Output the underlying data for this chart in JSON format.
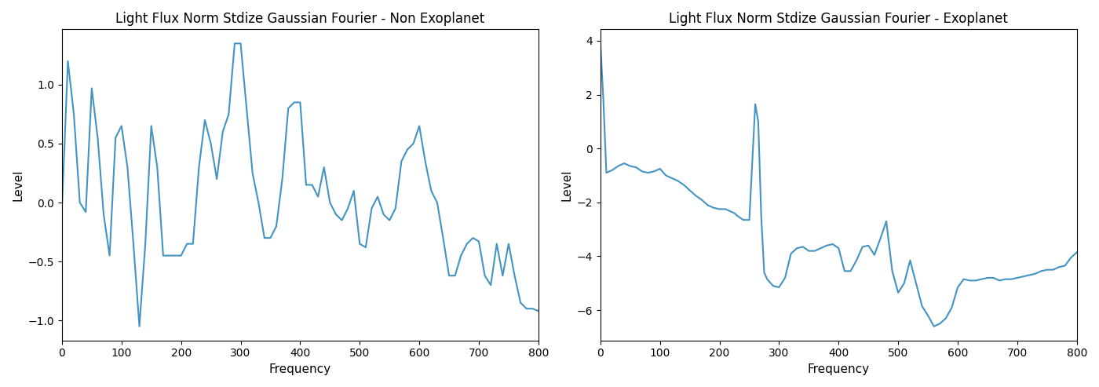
{
  "title_left": "Light Flux Norm Stdize Gaussian Fourier - Non Exoplanet",
  "title_right": "Light Flux Norm Stdize Gaussian Fourier - Exoplanet",
  "xlabel": "Frequency",
  "ylabel": "Level",
  "line_color": "#4393c3",
  "line_width": 1.5,
  "left": {
    "x": [
      0,
      10,
      20,
      30,
      40,
      50,
      60,
      70,
      80,
      90,
      100,
      110,
      120,
      130,
      140,
      150,
      160,
      170,
      180,
      190,
      200,
      210,
      220,
      230,
      240,
      250,
      260,
      270,
      280,
      290,
      300,
      310,
      320,
      330,
      340,
      350,
      360,
      370,
      380,
      390,
      400,
      410,
      420,
      430,
      440,
      450,
      460,
      470,
      480,
      490,
      500,
      510,
      520,
      530,
      540,
      550,
      560,
      570,
      580,
      590,
      600,
      610,
      620,
      630,
      640,
      650,
      660,
      670,
      680,
      690,
      700,
      710,
      720,
      730,
      740,
      750,
      760,
      770,
      780,
      790,
      800
    ],
    "y": [
      -0.05,
      1.2,
      0.75,
      0.0,
      -0.08,
      0.97,
      0.55,
      -0.1,
      -0.45,
      0.55,
      0.65,
      0.3,
      -0.35,
      -1.05,
      -0.35,
      0.65,
      0.3,
      -0.45,
      -0.45,
      -0.45,
      -0.45,
      -0.35,
      -0.35,
      0.3,
      0.7,
      0.5,
      0.2,
      0.6,
      0.75,
      1.35,
      1.35,
      0.8,
      0.25,
      0.0,
      -0.3,
      -0.3,
      -0.2,
      0.2,
      0.8,
      0.85,
      0.85,
      0.15,
      0.15,
      0.05,
      0.3,
      0.0,
      -0.1,
      -0.15,
      -0.05,
      0.1,
      -0.35,
      -0.38,
      -0.05,
      0.05,
      -0.1,
      -0.15,
      -0.05,
      0.35,
      0.45,
      0.5,
      0.65,
      0.35,
      0.1,
      0.0,
      -0.3,
      -0.62,
      -0.62,
      -0.45,
      -0.35,
      -0.3,
      -0.33,
      -0.62,
      -0.7,
      -0.35,
      -0.62,
      -0.35,
      -0.62,
      -0.85,
      -0.9,
      -0.9,
      -0.92
    ]
  },
  "right": {
    "x": [
      0,
      5,
      10,
      20,
      30,
      40,
      50,
      60,
      70,
      80,
      90,
      100,
      110,
      120,
      130,
      140,
      150,
      160,
      170,
      180,
      190,
      200,
      210,
      220,
      225,
      230,
      240,
      250,
      260,
      265,
      270,
      275,
      280,
      290,
      300,
      310,
      320,
      330,
      340,
      350,
      360,
      370,
      380,
      390,
      400,
      410,
      420,
      430,
      440,
      450,
      460,
      470,
      480,
      490,
      500,
      510,
      520,
      530,
      540,
      550,
      560,
      570,
      580,
      590,
      600,
      610,
      620,
      630,
      640,
      650,
      660,
      670,
      680,
      690,
      700,
      710,
      720,
      730,
      740,
      750,
      760,
      770,
      780,
      790,
      800
    ],
    "y": [
      3.9,
      1.8,
      -0.9,
      -0.8,
      -0.65,
      -0.55,
      -0.65,
      -0.7,
      -0.85,
      -0.9,
      -0.85,
      -0.75,
      -1.0,
      -1.1,
      -1.2,
      -1.35,
      -1.55,
      -1.75,
      -1.9,
      -2.1,
      -2.2,
      -2.25,
      -2.25,
      -2.35,
      -2.4,
      -2.5,
      -2.65,
      -2.65,
      1.65,
      1.0,
      -2.5,
      -4.6,
      -4.85,
      -5.1,
      -5.15,
      -4.8,
      -3.9,
      -3.7,
      -3.65,
      -3.8,
      -3.8,
      -3.7,
      -3.6,
      -3.55,
      -3.7,
      -4.55,
      -4.55,
      -4.15,
      -3.65,
      -3.6,
      -3.95,
      -3.35,
      -2.7,
      -4.55,
      -5.35,
      -5.0,
      -4.15,
      -5.0,
      -5.85,
      -6.2,
      -6.6,
      -6.5,
      -6.3,
      -5.9,
      -5.15,
      -4.85,
      -4.9,
      -4.9,
      -4.85,
      -4.8,
      -4.8,
      -4.9,
      -4.85,
      -4.85,
      -4.8,
      -4.75,
      -4.7,
      -4.65,
      -4.55,
      -4.5,
      -4.5,
      -4.4,
      -4.35,
      -4.05,
      -3.85
    ]
  }
}
